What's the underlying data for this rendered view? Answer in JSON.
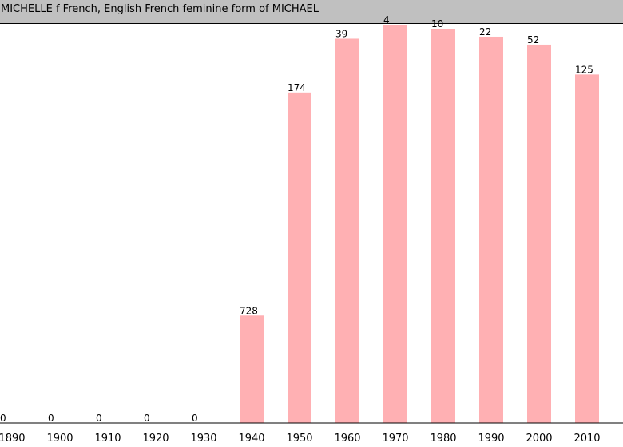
{
  "chart_data": {
    "type": "bar",
    "title": "MICHELLE f French, English French feminine form of MICHAEL",
    "categories": [
      "1890",
      "1900",
      "1910",
      "1920",
      "1930",
      "1940",
      "1950",
      "1960",
      "1970",
      "1980",
      "1990",
      "2000",
      "2010"
    ],
    "values": [
      0,
      0,
      0,
      0,
      0,
      0.27,
      0.83,
      0.965,
      1.0,
      0.99,
      0.97,
      0.95,
      0.875
    ],
    "data_labels": [
      "0",
      "0",
      "0",
      "0",
      "0",
      "728",
      "174",
      "39",
      "4",
      "10",
      "22",
      "52",
      "125"
    ],
    "xlabel": "",
    "ylabel": "",
    "ylim": [
      0,
      1
    ],
    "grid": false,
    "legend": "none",
    "bar_color": "#ffb0b3",
    "axis_color": "#000000",
    "title_bar_color": "#c0c0c0"
  }
}
